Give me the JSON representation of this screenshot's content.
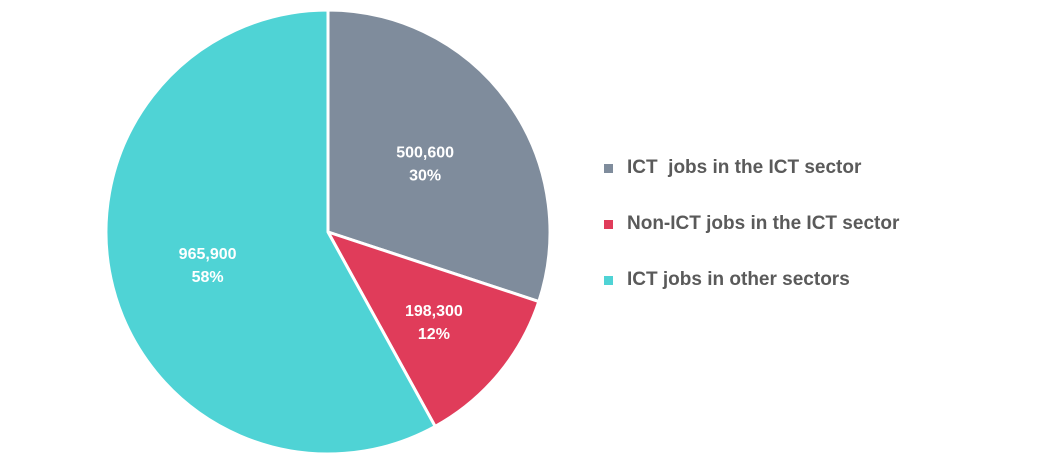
{
  "chart_data": {
    "type": "pie",
    "title": "",
    "slices": [
      {
        "name": "ICT  jobs in the ICT sector",
        "value": 500600,
        "value_label": "500,600",
        "percent_label": "30%",
        "color": "#7f8c9c"
      },
      {
        "name": "Non-ICT jobs in the ICT sector",
        "value": 198300,
        "value_label": "198,300",
        "percent_label": "12%",
        "color": "#e03c5a"
      },
      {
        "name": "ICT jobs in other sectors",
        "value": 965900,
        "value_label": "965,900",
        "percent_label": "58%",
        "color": "#4fd3d5"
      }
    ],
    "legend_position": "right"
  }
}
